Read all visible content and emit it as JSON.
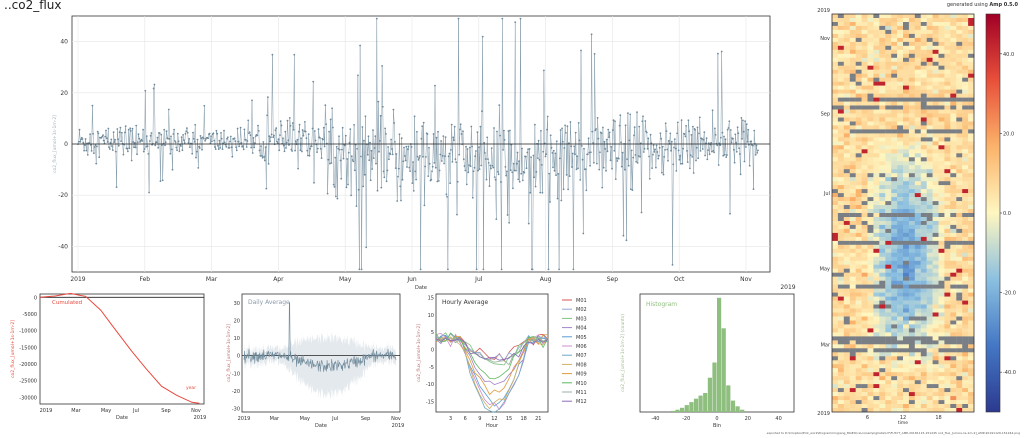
{
  "header": {
    "title": "..co2_flux",
    "generated_prefix": "generated using ",
    "generated_tool": "Amp 0.5.0"
  },
  "footer": {
    "note": "exported to D:\\Dropbox\\Erik_work\\Programming\\ang_MGEO\\ce\\co\\samp\\ghsite\\U7\\FUSYT_AMP-20181115-151245 co2_flux_[umol+1s-1m-2]_AMP-20191129-151244.png"
  },
  "colors": {
    "series": "#6f8a9b",
    "cumulative": "#e8493d",
    "histogram": "#8fbf7f",
    "daily_label": "#8a9aaa",
    "hourly_title": "#333333"
  },
  "chart_data": [
    {
      "id": "main",
      "type": "scatter",
      "title": "",
      "xlabel": "Date",
      "ylabel": "co2_flux_[umol+1s-1m-2]",
      "x_ticks": [
        "2019",
        "Feb",
        "Mar",
        "Apr",
        "May",
        "Jun",
        "Jul",
        "Aug",
        "Sep",
        "Oct",
        "Nov"
      ],
      "x_extra_label": "2019",
      "y_ticks": [
        -40,
        -20,
        0,
        20,
        40
      ],
      "ylim": [
        -50,
        50
      ],
      "grid": true,
      "n_points": 900,
      "envelope": {
        "months": [
          "Jan",
          "Feb",
          "Mar",
          "Apr",
          "May",
          "Jun",
          "Jul",
          "Aug",
          "Sep",
          "Oct",
          "Nov"
        ],
        "typical_amplitude": [
          6,
          5,
          5,
          8,
          14,
          16,
          17,
          16,
          14,
          11,
          8
        ],
        "mean": [
          1,
          1,
          1,
          1,
          -4,
          -6,
          -7,
          -6,
          -4,
          -1,
          1
        ]
      }
    },
    {
      "id": "cumulative",
      "type": "line",
      "title": "",
      "legend_label": "Cumulated",
      "annotation": "year",
      "xlabel": "Date",
      "ylabel": "co2_flux_[umol+1s-1m-2]",
      "x_ticks": [
        "2019",
        "Mar",
        "May",
        "Jul",
        "Sep",
        "Nov"
      ],
      "x_extra_label": "2019",
      "y_ticks": [
        -30000,
        -25000,
        -20000,
        -15000,
        -10000,
        -5000,
        0
      ],
      "ylim": [
        -32000,
        1000
      ],
      "x": [
        0,
        1,
        2,
        2.6,
        3,
        4,
        5,
        6,
        7,
        8,
        9,
        10,
        10.5
      ],
      "values": [
        0,
        400,
        900,
        1000,
        500,
        -3500,
        -9500,
        -15500,
        -21500,
        -26500,
        -30000,
        -31500,
        -31800
      ]
    },
    {
      "id": "daily",
      "type": "line",
      "title": "Daily Average",
      "xlabel": "Date",
      "ylabel": "co2_flux_[umol+1s-1m-2]",
      "x_ticks": [
        "2019",
        "Mar",
        "May",
        "Jul",
        "Sep",
        "Nov"
      ],
      "x_extra_label": "2019",
      "y_ticks": [
        -30,
        -20,
        -10,
        0,
        10,
        20,
        30
      ],
      "ylim": [
        -32,
        35
      ],
      "spike": 30,
      "n_days": 310
    },
    {
      "id": "hourly",
      "type": "line",
      "title": "Hourly Average",
      "xlabel": "Hour",
      "ylabel": "co2_flux_[umol+1s-1m-2]",
      "x_ticks": [
        3,
        6,
        9,
        12,
        15,
        18,
        21
      ],
      "y_ticks": [
        -15,
        -10,
        -5,
        0,
        5,
        10,
        15
      ],
      "ylim": [
        -18,
        16
      ],
      "xlim": [
        0,
        23
      ],
      "series": [
        {
          "name": "M01",
          "color": "#d9534f",
          "depth": 2
        },
        {
          "name": "M02",
          "color": "#8fa8cf",
          "depth": 3
        },
        {
          "name": "M03",
          "color": "#7fc47f",
          "depth": 4
        },
        {
          "name": "M04",
          "color": "#a283c8",
          "depth": 10
        },
        {
          "name": "M05",
          "color": "#5a9bd4",
          "depth": 15
        },
        {
          "name": "M06",
          "color": "#cf8ccf",
          "depth": 17
        },
        {
          "name": "M07",
          "color": "#6aa8c8",
          "depth": 18
        },
        {
          "name": "M08",
          "color": "#d0b060",
          "depth": 16
        },
        {
          "name": "M09",
          "color": "#e09a3e",
          "depth": 12
        },
        {
          "name": "M10",
          "color": "#5cb85c",
          "depth": 8
        },
        {
          "name": "M11",
          "color": "#9ab0a0",
          "depth": 4
        },
        {
          "name": "M12",
          "color": "#8a6bb8",
          "depth": 3
        }
      ]
    },
    {
      "id": "histogram",
      "type": "bar",
      "title": "Histogram",
      "xlabel": "Bin",
      "ylabel": "co2_flux_[umol+1s-1m-2] (counts)",
      "x_ticks": [
        -40,
        -20,
        0,
        20,
        40
      ],
      "y_ticks": [
        0,
        500,
        1000,
        1500,
        2000,
        2500,
        3000
      ],
      "ylim": [
        0,
        3100
      ],
      "xlim": [
        -50,
        50
      ],
      "bins": [
        -30,
        -27,
        -24,
        -21,
        -18,
        -15,
        -12,
        -9,
        -6,
        -3,
        0,
        3,
        6,
        9,
        12,
        15
      ],
      "values": [
        30,
        60,
        110,
        180,
        260,
        350,
        430,
        500,
        900,
        1300,
        3000,
        2200,
        700,
        300,
        150,
        60
      ]
    },
    {
      "id": "heatmap",
      "type": "heatmap",
      "title": "",
      "xlabel": "time",
      "x_ticks": [
        6,
        12,
        18
      ],
      "y_top_label": "2019",
      "y_bottom_label": "2019",
      "y_ticks": [
        "Nov",
        "Sep",
        "Jul",
        "May",
        "Mar"
      ],
      "colorbar_ticks": [
        40.0,
        20.0,
        0.0,
        -20.0,
        -40.0
      ],
      "colorbar_labels": [
        "40.0",
        "20.0",
        "0.0",
        "-20.0",
        "-40.0"
      ],
      "colormap": [
        "#2c3a8f",
        "#4477c4",
        "#8cc0e0",
        "#fff6c0",
        "#fbb36a",
        "#e8503a",
        "#a00026"
      ]
    }
  ]
}
